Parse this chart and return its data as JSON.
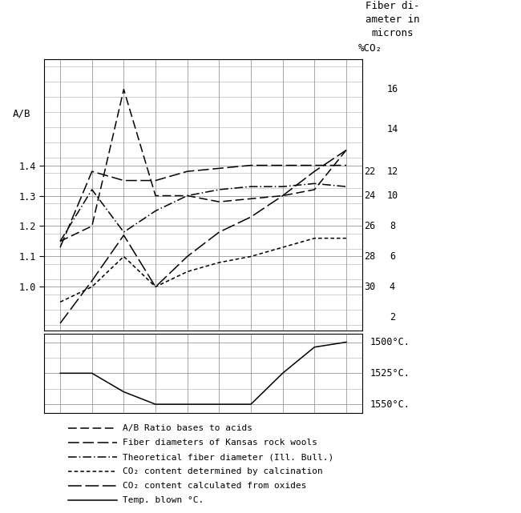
{
  "x_points": [
    1,
    2,
    3,
    4,
    5,
    6,
    7,
    8,
    9,
    10
  ],
  "ab_ratio": [
    1.15,
    1.2,
    1.65,
    1.3,
    1.3,
    1.28,
    1.29,
    1.3,
    1.32,
    1.45
  ],
  "fiber_kansas": [
    1.13,
    1.38,
    1.35,
    1.35,
    1.38,
    1.39,
    1.4,
    1.4,
    1.4,
    1.4
  ],
  "fiber_theoretical": [
    1.15,
    1.32,
    1.18,
    1.25,
    1.3,
    1.32,
    1.33,
    1.33,
    1.34,
    1.33
  ],
  "co2_calcination": [
    0.95,
    1.0,
    1.1,
    1.0,
    1.05,
    1.08,
    1.1,
    1.13,
    1.16,
    1.16
  ],
  "co2_oxides": [
    0.88,
    1.02,
    1.17,
    1.0,
    1.1,
    1.18,
    1.23,
    1.3,
    1.38,
    1.45
  ],
  "temp_vals": [
    1525,
    1525,
    1540,
    1550,
    1550,
    1550,
    1550,
    1525,
    1504,
    1500
  ],
  "background": "#ffffff",
  "grid_color": "#999999",
  "co2_labels": [
    [
      "22",
      1.38
    ],
    [
      "24",
      1.3
    ],
    [
      "26",
      1.2
    ],
    [
      "28",
      1.1
    ],
    [
      "30",
      1.0
    ]
  ],
  "fiber_labels": [
    [
      "16",
      1.65
    ],
    [
      "14",
      1.52
    ],
    [
      "12",
      1.38
    ],
    [
      "10",
      1.3
    ],
    [
      "8",
      1.2
    ],
    [
      "6",
      1.1
    ],
    [
      "4",
      1.0
    ],
    [
      "2",
      0.9
    ]
  ],
  "temp_labels": [
    [
      "1500°C.",
      1500
    ],
    [
      "1525°C.",
      1525
    ],
    [
      "1550°C.",
      1550
    ]
  ],
  "legend_items": [
    "A/B Ratio bases to acids",
    "Fiber diameters of Kansas rock wools",
    "Theoretical fiber diameter (Ill. Bull.)",
    "CO₂ content determined by calcination",
    "CO₂ content calculated from oxides",
    "Temp. blown °C."
  ],
  "fig_width": 6.5,
  "fig_height": 6.41
}
